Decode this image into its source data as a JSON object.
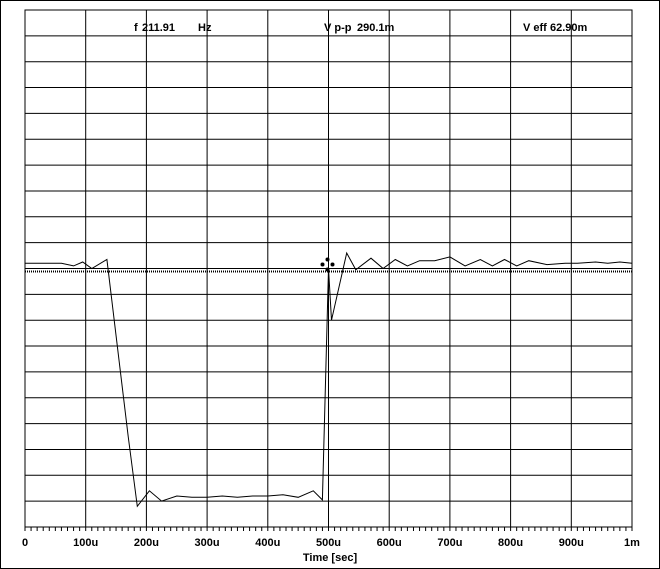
{
  "readouts": {
    "freq_label": "f",
    "freq_value": "211.91",
    "freq_unit": "Hz",
    "vpp_label": "V p-p",
    "vpp_value": "290.1m",
    "veff_label": "V eff",
    "veff_value": "62.90m"
  },
  "chart_data": {
    "type": "line",
    "title": "",
    "xlabel": "Time [sec]",
    "ylabel": "",
    "x_tick_labels": [
      "0",
      "100u",
      "200u",
      "300u",
      "400u",
      "500u",
      "600u",
      "700u",
      "800u",
      "900u",
      "1m"
    ],
    "xlim": [
      0,
      1000
    ],
    "ylim": [
      -10,
      10
    ],
    "grid": true,
    "series": [
      {
        "color": "#000000",
        "x": [
          0,
          60,
          80,
          95,
          110,
          135,
          170,
          185,
          205,
          225,
          250,
          275,
          300,
          325,
          350,
          375,
          400,
          425,
          450,
          475,
          490,
          500,
          505,
          530,
          545,
          570,
          590,
          610,
          630,
          650,
          675,
          700,
          725,
          750,
          770,
          790,
          810,
          830,
          860,
          890,
          910,
          940,
          960,
          980,
          1000
        ],
        "y": [
          0.2,
          0.2,
          0.1,
          0.25,
          0.0,
          0.35,
          -6.5,
          -9.2,
          -8.6,
          -9.0,
          -8.8,
          -8.85,
          -8.85,
          -8.8,
          -8.85,
          -8.8,
          -8.8,
          -8.75,
          -8.85,
          -8.6,
          -8.95,
          0.0,
          -2.0,
          0.6,
          -0.05,
          0.4,
          0.0,
          0.35,
          0.1,
          0.3,
          0.3,
          0.45,
          0.1,
          0.35,
          0.1,
          0.35,
          0.1,
          0.3,
          0.15,
          0.2,
          0.2,
          0.25,
          0.2,
          0.25,
          0.2
        ]
      }
    ],
    "reference_line_y": 0,
    "cursor_x": 500
  }
}
